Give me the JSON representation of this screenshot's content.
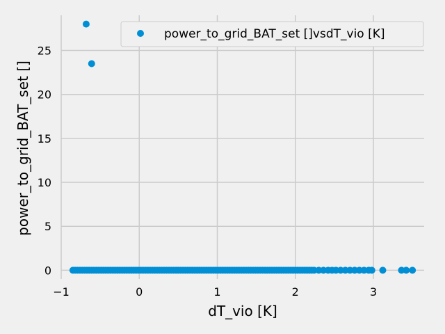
{
  "chart_data": {
    "type": "scatter",
    "title": "",
    "xlabel": "dT_vio [K]",
    "ylabel": "power_to_grid_BAT_set []",
    "xlim": [
      -1.0,
      3.65
    ],
    "ylim": [
      -1.0,
      29.0
    ],
    "x_ticks": [
      -1,
      0,
      1,
      2,
      3
    ],
    "x_tick_labels": [
      "−1",
      "0",
      "1",
      "2",
      "3"
    ],
    "y_ticks": [
      0,
      5,
      10,
      15,
      20,
      25
    ],
    "y_tick_labels": [
      "0",
      "5",
      "10",
      "15",
      "20",
      "25"
    ],
    "grid": true,
    "legend_position": "top-right",
    "colors": {
      "series": "#008fd5",
      "background": "#f0f0f0",
      "grid": "#cbcbcb"
    },
    "series": [
      {
        "name": "power_to_grid_BAT_set []vsdT_vio [K]",
        "x": [
          -0.68,
          -0.61,
          -0.85,
          -0.82,
          -0.79,
          -0.76,
          -0.73,
          -0.7,
          -0.67,
          -0.64,
          -0.61,
          -0.58,
          -0.55,
          -0.52,
          -0.49,
          -0.46,
          -0.43,
          -0.4,
          -0.37,
          -0.34,
          -0.31,
          -0.28,
          -0.25,
          -0.22,
          -0.19,
          -0.16,
          -0.13,
          -0.1,
          -0.07,
          -0.04,
          -0.01,
          0.02,
          0.05,
          0.08,
          0.11,
          0.14,
          0.17,
          0.2,
          0.23,
          0.26,
          0.29,
          0.32,
          0.35,
          0.38,
          0.41,
          0.44,
          0.47,
          0.5,
          0.53,
          0.56,
          0.59,
          0.62,
          0.65,
          0.68,
          0.71,
          0.74,
          0.77,
          0.8,
          0.83,
          0.86,
          0.89,
          0.92,
          0.95,
          0.98,
          1.01,
          1.04,
          1.07,
          1.1,
          1.13,
          1.16,
          1.19,
          1.22,
          1.25,
          1.28,
          1.31,
          1.34,
          1.37,
          1.4,
          1.43,
          1.46,
          1.49,
          1.52,
          1.55,
          1.58,
          1.61,
          1.64,
          1.67,
          1.7,
          1.73,
          1.76,
          1.79,
          1.82,
          1.85,
          1.88,
          1.91,
          1.94,
          1.97,
          2.0,
          2.03,
          2.06,
          2.09,
          2.12,
          2.15,
          2.18,
          2.21,
          2.24,
          2.3,
          2.36,
          2.42,
          2.47,
          2.52,
          2.58,
          2.64,
          2.7,
          2.76,
          2.82,
          2.88,
          2.94,
          2.98,
          3.12,
          3.36,
          3.42,
          3.5
        ],
        "y": [
          28.0,
          23.5,
          0,
          0,
          0,
          0,
          0,
          0,
          0,
          0,
          0,
          0,
          0,
          0,
          0,
          0,
          0,
          0,
          0,
          0,
          0,
          0,
          0,
          0,
          0,
          0,
          0,
          0,
          0,
          0,
          0,
          0,
          0,
          0,
          0,
          0,
          0,
          0,
          0,
          0,
          0,
          0,
          0,
          0,
          0,
          0,
          0,
          0,
          0,
          0,
          0,
          0,
          0,
          0,
          0,
          0,
          0,
          0,
          0,
          0,
          0,
          0,
          0,
          0,
          0,
          0,
          0,
          0,
          0,
          0,
          0,
          0,
          0,
          0,
          0,
          0,
          0,
          0,
          0,
          0,
          0,
          0,
          0,
          0,
          0,
          0,
          0,
          0,
          0,
          0,
          0,
          0,
          0,
          0,
          0,
          0,
          0,
          0,
          0,
          0,
          0,
          0,
          0,
          0,
          0,
          0,
          0,
          0,
          0,
          0,
          0,
          0,
          0,
          0,
          0,
          0,
          0,
          0,
          0,
          0,
          0,
          0,
          0
        ]
      }
    ]
  }
}
